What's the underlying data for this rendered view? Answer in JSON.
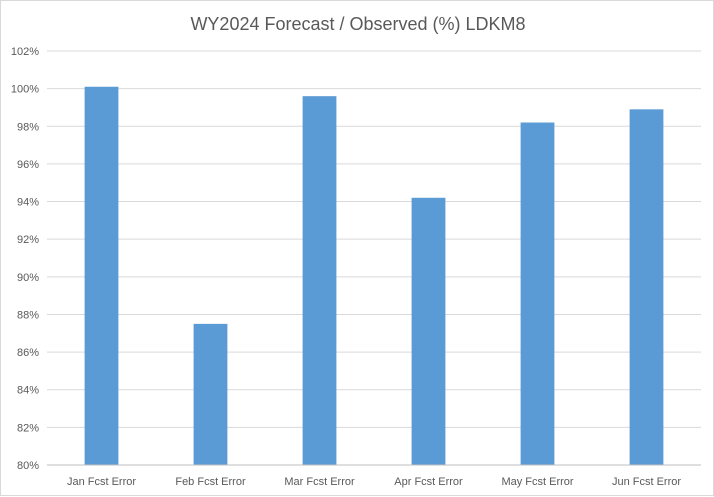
{
  "chart_data": {
    "type": "bar",
    "title": "WY2024 Forecast / Observed (%) LDKM8",
    "xlabel": "",
    "ylabel": "",
    "categories": [
      "Jan Fcst Error",
      "Feb Fcst Error",
      "Mar Fcst Error",
      "Apr Fcst Error",
      "May Fcst Error",
      "Jun Fcst Error"
    ],
    "values": [
      100.1,
      87.5,
      99.6,
      94.2,
      98.2,
      98.9
    ],
    "ylim": [
      80,
      102
    ],
    "ytick_step": 2,
    "ytick_format": "percent",
    "grid": true,
    "legend": "none",
    "bar_color": "#5b9bd5"
  }
}
